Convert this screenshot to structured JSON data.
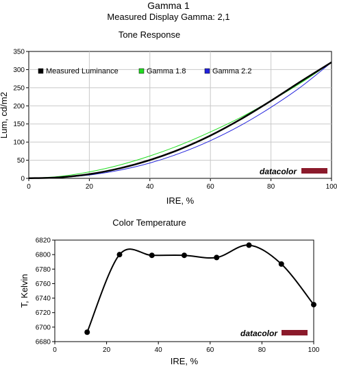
{
  "header": {
    "title": "Gamma 1",
    "subtitle": "Measured Display Gamma: 2,1"
  },
  "watermark": {
    "text": "datacolor",
    "bar_color": "#8b1a2b"
  },
  "chart_data": [
    {
      "type": "line",
      "title": "Tone Response",
      "xlabel": "IRE, %",
      "ylabel": "Lum, cd/m2",
      "xlim": [
        0,
        100
      ],
      "ylim": [
        0,
        350
      ],
      "xticks": [
        0,
        20,
        40,
        60,
        80,
        100
      ],
      "yticks": [
        0,
        50,
        100,
        150,
        200,
        250,
        300,
        350
      ],
      "grid": true,
      "legend_position": "top-left",
      "series": [
        {
          "name": "Measured Luminance",
          "color": "#000000",
          "x": [
            0,
            10,
            20,
            30,
            40,
            50,
            60,
            70,
            80,
            90,
            100
          ],
          "values": [
            0.5,
            2.7,
            11.5,
            27.5,
            50.5,
            80.5,
            118,
            163,
            214,
            268,
            320
          ]
        },
        {
          "name": "Gamma 1.8",
          "color": "#22dd22",
          "x": [
            0,
            10,
            20,
            30,
            40,
            50,
            60,
            70,
            80,
            90,
            100
          ],
          "values": [
            0,
            5.1,
            17.8,
            36.7,
            61.7,
            92,
            128,
            168,
            214,
            264,
            320
          ]
        },
        {
          "name": "Gamma 2.2",
          "color": "#2222dd",
          "x": [
            0,
            10,
            20,
            30,
            40,
            50,
            60,
            70,
            80,
            90,
            100
          ],
          "values": [
            0,
            2.0,
            9.2,
            22.5,
            42.3,
            69.6,
            104,
            146,
            196,
            253,
            320
          ]
        }
      ]
    },
    {
      "type": "line",
      "title": "Color Temperature",
      "xlabel": "IRE, %",
      "ylabel": "T, Kelvin",
      "xlim": [
        0,
        100
      ],
      "ylim": [
        6680,
        6820
      ],
      "xticks": [
        0,
        20,
        40,
        60,
        80,
        100
      ],
      "yticks": [
        6680,
        6700,
        6720,
        6740,
        6760,
        6780,
        6800,
        6820
      ],
      "grid": false,
      "series": [
        {
          "name": "",
          "color": "#000000",
          "x": [
            12.5,
            25,
            37.5,
            50,
            62.5,
            75,
            87.5,
            100
          ],
          "values": [
            6693,
            6800,
            6799,
            6799,
            6796,
            6813,
            6787,
            6731
          ]
        }
      ]
    }
  ]
}
